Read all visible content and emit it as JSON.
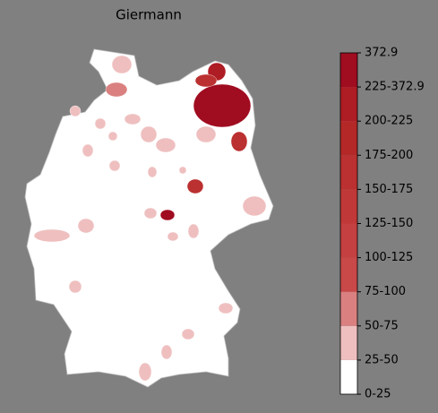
{
  "chart_data": {
    "type": "choropleth",
    "title": "Giermann",
    "colorbar": {
      "ticks": [
        {
          "value": 0,
          "label": "0-25"
        },
        {
          "value": 25,
          "label": "25-50"
        },
        {
          "value": 50,
          "label": "50-75"
        },
        {
          "value": 75,
          "label": "75-100"
        },
        {
          "value": 100,
          "label": "100-125"
        },
        {
          "value": 125,
          "label": "125-150"
        },
        {
          "value": 150,
          "label": "150-175"
        },
        {
          "value": 175,
          "label": "175-200"
        },
        {
          "value": 200,
          "label": "200-225"
        },
        {
          "value": 225,
          "label": "225-372.9"
        },
        372.9
      ],
      "colors": [
        "#ffffff",
        "#efbfbf",
        "#da8080",
        "#c94848",
        "#c54040",
        "#c03838",
        "#bb3030",
        "#b52828",
        "#ae1c24",
        "#a00c20"
      ]
    },
    "regions": [
      {
        "value": 300
      },
      {
        "value": 210
      },
      {
        "value": 160
      },
      {
        "value": 40
      },
      {
        "value": 150
      },
      {
        "value": 300
      },
      {
        "value": 150
      },
      {
        "value": 40
      },
      {
        "value": 40
      },
      {
        "value": 60
      },
      {
        "value": 40
      },
      {
        "value": 40
      },
      {
        "value": 40
      },
      {
        "value": 40
      },
      {
        "value": 40
      },
      {
        "value": 40
      },
      {
        "value": 40
      },
      {
        "value": 40
      },
      {
        "value": 40
      },
      {
        "value": 40
      },
      {
        "value": 40
      },
      {
        "value": 40
      },
      {
        "value": 40
      },
      {
        "value": 40
      },
      {
        "value": 40
      },
      {
        "value": 40
      },
      {
        "value": 40
      },
      {
        "value": 40
      },
      {
        "value": 40
      },
      {
        "value": 40
      }
    ]
  }
}
